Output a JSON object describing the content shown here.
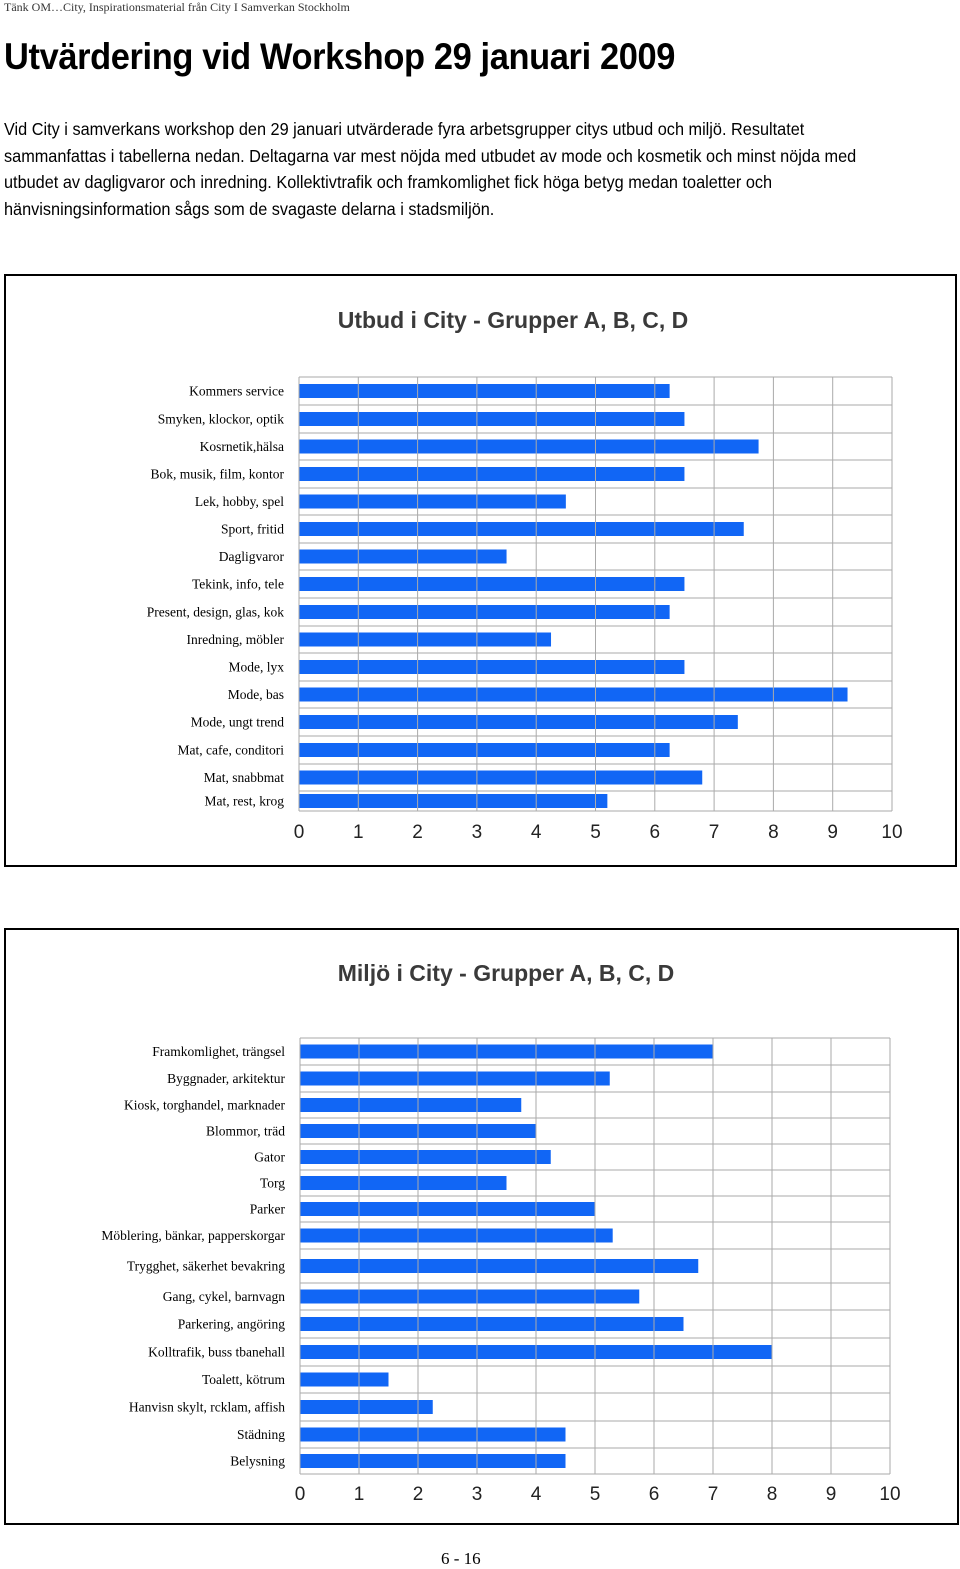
{
  "header": {
    "running_title": "Tänk OM…City, Inspirationsmaterial från City I Samverkan Stockholm"
  },
  "document": {
    "title": "Utvärdering vid Workshop 29 januari 2009",
    "intro_lines": [
      "Vid City i samverkans workshop den 29 januari utvärderade  fyra arbetsgrupper citys utbud och miljö. Resultatet",
      "sammanfattas i tabellerna nedan. Deltagarna var mest nöjda med utbudet av mode och kosmetik och minst nöjda med",
      "utbudet av dagligvaror och inredning. Kollektivtrafik och framkomlighet fick höga betyg medan toaletter och",
      "hänvisningsinformation sågs som de svagaste delarna i stadsmiljön."
    ]
  },
  "footer": {
    "page_number": "6 - 16"
  },
  "colors": {
    "bar": "#1166f5",
    "grid": "#aaaaaa",
    "frame": "#000000"
  },
  "chart_data": [
    {
      "type": "bar",
      "orientation": "horizontal",
      "title": "Utbud i City - Grupper A, B, C, D",
      "xlabel": "",
      "ylabel": "",
      "xlim": [
        0,
        10
      ],
      "x_ticks": [
        "0",
        "1",
        "2",
        "3",
        "4",
        "5",
        "6",
        "7",
        "8",
        "9",
        "10"
      ],
      "grid": true,
      "legend": "none",
      "categories": [
        "Kommers service",
        "Smyken, klockor, optik",
        "Kosrnetik,hälsa",
        "Bok, musik, film, kontor",
        "Lek, hobby, spel",
        "Sport, fritid",
        "Dagligvaror",
        "Tekink, info, tele",
        "Present, design, glas, kok",
        "Inredning, möbler",
        "Mode, lyx",
        "Mode, bas",
        "Mode, ungt trend",
        "Mat, cafe, conditori",
        "Mat, snabbmat",
        "Mat, rest, krog"
      ],
      "values": [
        6.25,
        6.5,
        7.75,
        6.5,
        4.5,
        7.5,
        3.5,
        6.5,
        6.25,
        4.25,
        6.5,
        9.25,
        7.4,
        6.25,
        6.8,
        5.2
      ]
    },
    {
      "type": "bar",
      "orientation": "horizontal",
      "title": "Miljö i City - Grupper A, B, C, D",
      "xlabel": "",
      "ylabel": "",
      "xlim": [
        0,
        10
      ],
      "x_ticks": [
        "0",
        "1",
        "2",
        "3",
        "4",
        "5",
        "6",
        "7",
        "8",
        "9",
        "10"
      ],
      "grid": true,
      "legend": "none",
      "categories": [
        "Framkomlighet, trängsel",
        "Byggnader, arkitektur",
        "Kiosk, torghandel, marknader",
        "Blommor, träd",
        "Gator",
        "Torg",
        "Parker",
        "Möblering, bänkar, papperskorgar",
        "Trygghet, säkerhet bevakring",
        "Gang, cykel, barnvagn",
        "Parkering, angöring",
        "Kolltrafik, buss tbanehall",
        "Toalett, kötrum",
        "Hanvisn skylt, rcklam, affish",
        "Städning",
        "Belysning"
      ],
      "values": [
        7.0,
        5.25,
        3.75,
        4.0,
        4.25,
        3.5,
        5.0,
        5.3,
        6.75,
        5.75,
        6.5,
        8.0,
        1.5,
        2.25,
        4.5,
        4.5
      ]
    }
  ]
}
